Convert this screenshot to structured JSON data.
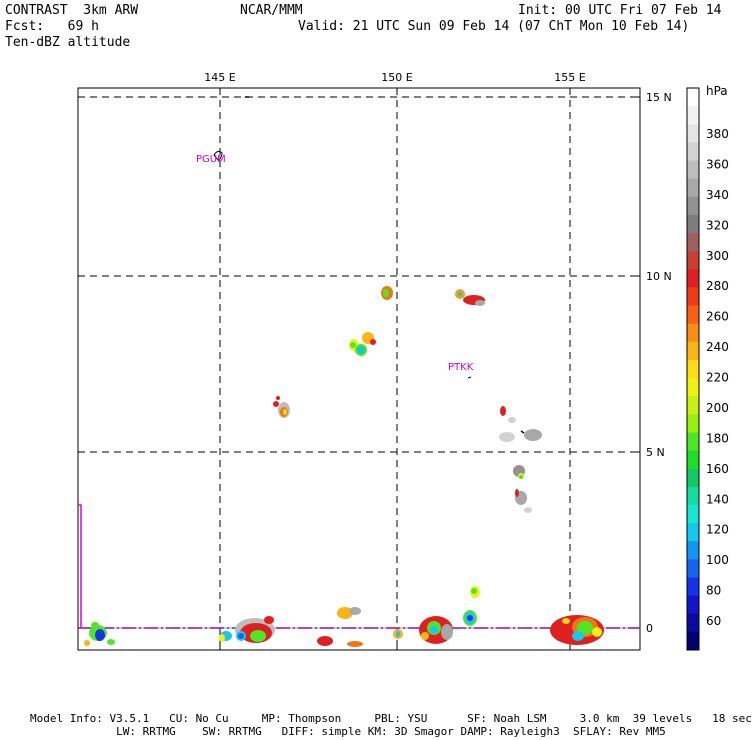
{
  "header": {
    "model": "CONTRAST  3km ARW",
    "center": "NCAR/MMM",
    "init": "Init: 00 UTC Fri 07 Feb 14",
    "fcst": "Fcst:   69 h",
    "valid": "Valid: 21 UTC Sun 09 Feb 14 (07 ChT Mon 10 Feb 14)",
    "field": "Ten-dBZ altitude"
  },
  "map": {
    "lon_labels": [
      "145 E",
      "150 E",
      "155 E"
    ],
    "lat_labels": [
      "15 N",
      "10 N",
      "5 N",
      "0"
    ],
    "stations": [
      "PGUM",
      "PTKK"
    ]
  },
  "colorbar": {
    "unit": "hPa",
    "labels": [
      "380",
      "360",
      "340",
      "320",
      "300",
      "280",
      "260",
      "240",
      "220",
      "200",
      "180",
      "160",
      "140",
      "120",
      "100",
      "80",
      "60"
    ],
    "colors": [
      "#ffffff",
      "#f2f2f2",
      "#e4e4e4",
      "#d2d2d2",
      "#bdbdbd",
      "#a8a8a8",
      "#929292",
      "#7d7d7d",
      "#a06060",
      "#c84030",
      "#e02020",
      "#f03c14",
      "#f86014",
      "#fc8c14",
      "#fcb414",
      "#fcdc14",
      "#f0f014",
      "#c8f014",
      "#96f014",
      "#50e628",
      "#1ede28",
      "#14c864",
      "#14dca0",
      "#14e6d2",
      "#14c8f0",
      "#1496f0",
      "#1464f0",
      "#1432e6",
      "#1414c8",
      "#0a0aa0",
      "#00006e"
    ]
  },
  "footer": {
    "line1": "Model Info: V3.5.1   CU: No Cu     MP: Thompson     PBL: YSU      SF: Noah LSM     3.0 km  39 levels   18 sec",
    "line2": "             LW: RRTMG    SW: RRTMG   DIFF: simple KM: 3D Smagor DAMP: Rayleigh3  SFLAY: Rev MM5"
  }
}
